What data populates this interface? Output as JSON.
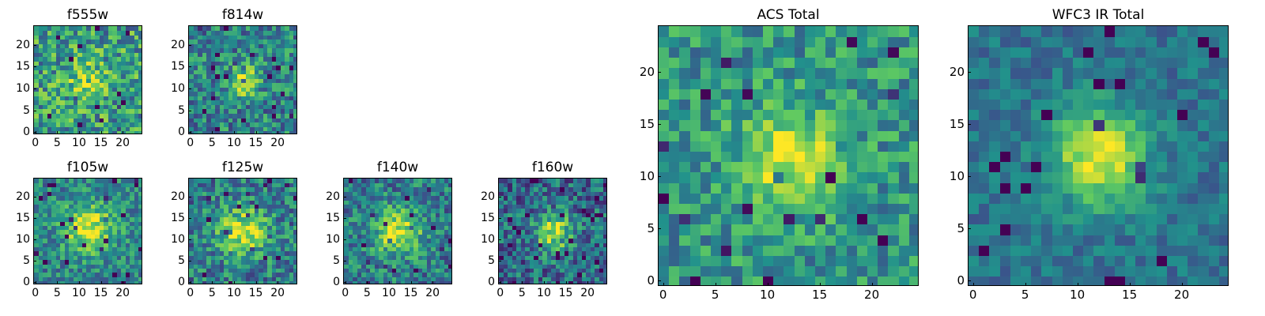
{
  "figure": {
    "title": "",
    "colormap": "viridis"
  },
  "colormap_stops": [
    "#440154",
    "#3b528b",
    "#21918c",
    "#5ec962",
    "#fde725"
  ],
  "chart_data": [
    {
      "id": "f555w",
      "type": "heatmap",
      "title": "f555w",
      "grid_size": 25,
      "xlim": [
        0,
        24
      ],
      "ylim": [
        0,
        24
      ],
      "xticks": [
        0,
        5,
        10,
        15,
        20
      ],
      "yticks": [
        0,
        5,
        10,
        15,
        20
      ],
      "xtick_labels": [
        "0",
        "5",
        "10",
        "15",
        "20"
      ],
      "ytick_labels": [
        "0",
        "5",
        "10",
        "15",
        "20"
      ],
      "peak": [
        12,
        12
      ],
      "noise": 0.3,
      "spread": 3.5,
      "base": 0.55,
      "amp": 0.25,
      "seed": 11
    },
    {
      "id": "f814w",
      "type": "heatmap",
      "title": "f814w",
      "grid_size": 25,
      "xlim": [
        0,
        24
      ],
      "ylim": [
        0,
        24
      ],
      "xticks": [
        0,
        5,
        10,
        15,
        20
      ],
      "yticks": [
        0,
        5,
        10,
        15,
        20
      ],
      "xtick_labels": [
        "0",
        "5",
        "10",
        "15",
        "20"
      ],
      "ytick_labels": [
        "0",
        "5",
        "10",
        "15",
        "20"
      ],
      "peak": [
        12,
        12
      ],
      "noise": 0.26,
      "spread": 2.5,
      "base": 0.45,
      "amp": 0.45,
      "seed": 23
    },
    {
      "id": "f105w",
      "type": "heatmap",
      "title": "f105w",
      "grid_size": 25,
      "xlim": [
        0,
        24
      ],
      "ylim": [
        0,
        24
      ],
      "xticks": [
        0,
        5,
        10,
        15,
        20
      ],
      "yticks": [
        0,
        5,
        10,
        15,
        20
      ],
      "xtick_labels": [
        "0",
        "5",
        "10",
        "15",
        "20"
      ],
      "ytick_labels": [
        "0",
        "5",
        "10",
        "15",
        "20"
      ],
      "peak": [
        12,
        13
      ],
      "noise": 0.22,
      "spread": 4.0,
      "base": 0.45,
      "amp": 0.5,
      "seed": 37
    },
    {
      "id": "f125w",
      "type": "heatmap",
      "title": "f125w",
      "grid_size": 25,
      "xlim": [
        0,
        24
      ],
      "ylim": [
        0,
        24
      ],
      "xticks": [
        0,
        5,
        10,
        15,
        20
      ],
      "yticks": [
        0,
        5,
        10,
        15,
        20
      ],
      "xtick_labels": [
        "0",
        "5",
        "10",
        "15",
        "20"
      ],
      "ytick_labels": [
        "0",
        "5",
        "10",
        "15",
        "20"
      ],
      "peak": [
        12,
        12
      ],
      "noise": 0.25,
      "spread": 4.0,
      "base": 0.42,
      "amp": 0.5,
      "seed": 41
    },
    {
      "id": "f140w",
      "type": "heatmap",
      "title": "f140w",
      "grid_size": 25,
      "xlim": [
        0,
        24
      ],
      "ylim": [
        0,
        24
      ],
      "xticks": [
        0,
        5,
        10,
        15,
        20
      ],
      "yticks": [
        0,
        5,
        10,
        15,
        20
      ],
      "xtick_labels": [
        "0",
        "5",
        "10",
        "15",
        "20"
      ],
      "ytick_labels": [
        "0",
        "5",
        "10",
        "15",
        "20"
      ],
      "peak": [
        12,
        12
      ],
      "noise": 0.24,
      "spread": 3.8,
      "base": 0.42,
      "amp": 0.5,
      "seed": 53
    },
    {
      "id": "f160w",
      "type": "heatmap",
      "title": "f160w",
      "grid_size": 25,
      "xlim": [
        0,
        24
      ],
      "ylim": [
        0,
        24
      ],
      "xticks": [
        0,
        5,
        10,
        15,
        20
      ],
      "yticks": [
        0,
        5,
        10,
        15,
        20
      ],
      "xtick_labels": [
        "0",
        "5",
        "10",
        "15",
        "20"
      ],
      "ytick_labels": [
        "0",
        "5",
        "10",
        "15",
        "20"
      ],
      "peak": [
        12,
        12
      ],
      "noise": 0.25,
      "spread": 3.0,
      "base": 0.35,
      "amp": 0.55,
      "seed": 67
    },
    {
      "id": "acs_total",
      "type": "heatmap",
      "title": "ACS Total",
      "grid_size": 25,
      "xlim": [
        0,
        24
      ],
      "ylim": [
        0,
        24
      ],
      "xticks": [
        0,
        5,
        10,
        15,
        20
      ],
      "yticks": [
        0,
        5,
        10,
        15,
        20
      ],
      "xtick_labels": [
        "0",
        "5",
        "10",
        "15",
        "20"
      ],
      "ytick_labels": [
        "0",
        "5",
        "10",
        "15",
        "20"
      ],
      "peak": [
        12,
        12
      ],
      "noise": 0.22,
      "spread": 3.2,
      "base": 0.52,
      "amp": 0.45,
      "seed": 79
    },
    {
      "id": "wfc3_ir_total",
      "type": "heatmap",
      "title": "WFC3 IR Total",
      "grid_size": 25,
      "xlim": [
        0,
        24
      ],
      "ylim": [
        0,
        24
      ],
      "xticks": [
        0,
        5,
        10,
        15,
        20
      ],
      "yticks": [
        0,
        5,
        10,
        15,
        20
      ],
      "xtick_labels": [
        "0",
        "5",
        "10",
        "15",
        "20"
      ],
      "ytick_labels": [
        "0",
        "5",
        "10",
        "15",
        "20"
      ],
      "peak": [
        12,
        12
      ],
      "noise": 0.13,
      "spread": 3.2,
      "base": 0.38,
      "amp": 0.6,
      "seed": 97
    }
  ]
}
